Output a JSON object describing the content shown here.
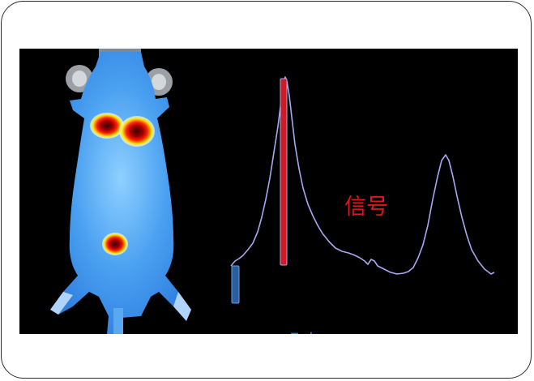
{
  "figure": {
    "signal_label": "信号",
    "noise_label": "噪声",
    "colors": {
      "background": "#000000",
      "mouse_body": "#4aa0f0",
      "hotspot_core": "#7a0000",
      "hotspot_ring": "#ff2a00",
      "hotspot_edge": "#ffe000",
      "trace": "#a8a8f0",
      "signal_bar": "#d01a24",
      "noise_bar": "#2a5f9e",
      "signal_text": "#e0141e",
      "noise_text": "#2f7fd0"
    },
    "icons": [
      "mouse-fluorescence-image",
      "spectrum-trace",
      "signal-bar",
      "noise-bar"
    ]
  }
}
